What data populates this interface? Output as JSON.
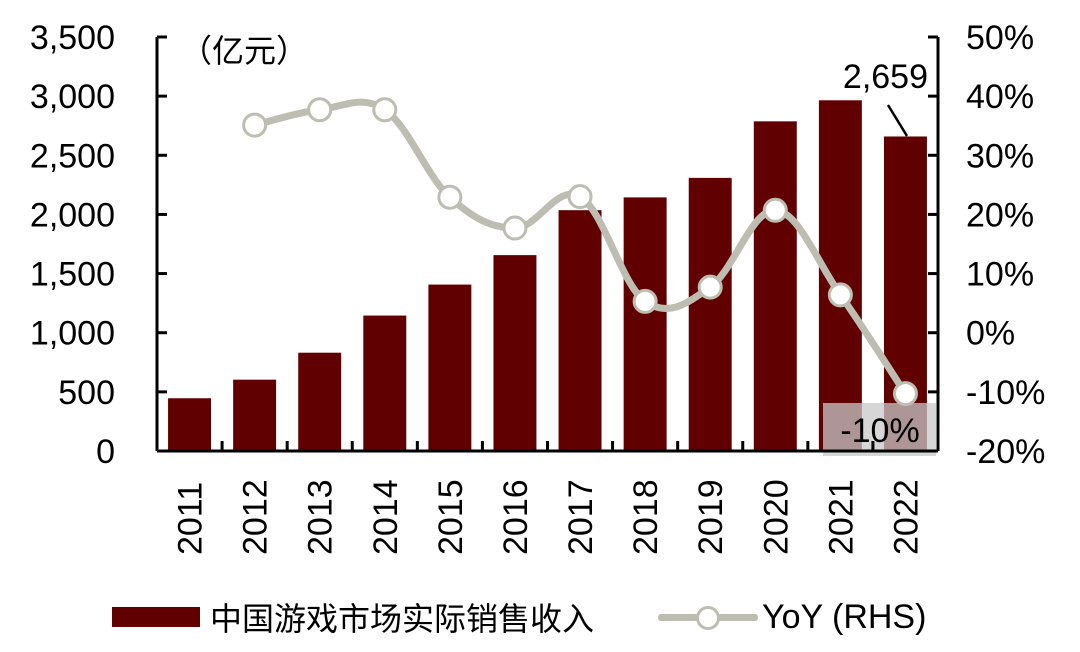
{
  "chart_data": {
    "type": "bar+line",
    "title": "",
    "unit_label": "（亿元）",
    "categories": [
      "2011",
      "2012",
      "2013",
      "2014",
      "2015",
      "2016",
      "2017",
      "2018",
      "2019",
      "2020",
      "2021",
      "2022"
    ],
    "series": [
      {
        "name": "中国游戏市场实际销售收入",
        "type": "bar",
        "axis": "left",
        "color": "#600000",
        "values": [
          446,
          603,
          831,
          1145,
          1407,
          1656,
          2036,
          2144,
          2309,
          2787,
          2965,
          2659
        ]
      },
      {
        "name": "YoY (RHS)",
        "type": "line",
        "axis": "right",
        "color": "#bdbdb1",
        "values": [
          null,
          35.1,
          37.7,
          37.7,
          22.9,
          17.7,
          23.0,
          5.3,
          7.7,
          20.7,
          6.4,
          -10.3
        ]
      }
    ],
    "left_axis": {
      "ylim": [
        0,
        3500
      ],
      "ticks": [
        "0",
        "500",
        "1,000",
        "1,500",
        "2,000",
        "2,500",
        "3,000",
        "3,500"
      ],
      "label": "（亿元）"
    },
    "right_axis": {
      "ylim": [
        -20,
        50
      ],
      "ticks": [
        "-20%",
        "-10%",
        "0%",
        "10%",
        "20%",
        "30%",
        "40%",
        "50%"
      ]
    },
    "annotations": [
      {
        "target": "2022 bar",
        "text": "2,659"
      },
      {
        "target": "2022 YoY",
        "text": "-10%"
      }
    ],
    "legend": {
      "position": "bottom",
      "entries": [
        "中国游戏市场实际销售收入",
        "YoY (RHS)"
      ]
    },
    "grid": false
  },
  "legend": {
    "bar_label": "中国游戏市场实际销售收入",
    "line_label": "YoY (RHS)"
  }
}
